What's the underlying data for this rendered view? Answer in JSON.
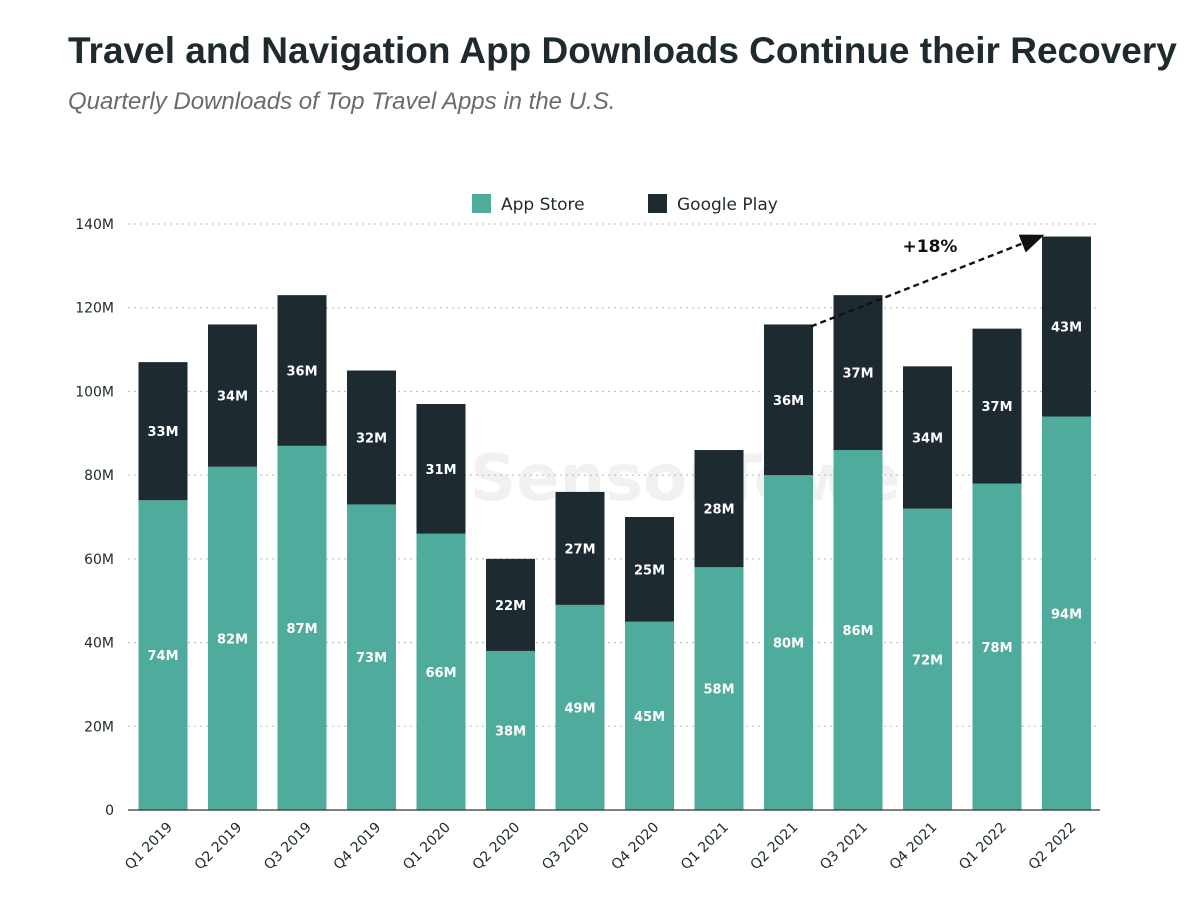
{
  "chart_data": {
    "type": "bar",
    "stacked": true,
    "title": "Travel and Navigation App Downloads Continue their Recovery",
    "subtitle": "Quarterly Downloads of Top Travel Apps in the U.S.",
    "categories": [
      "Q1 2019",
      "Q2 2019",
      "Q3 2019",
      "Q4 2019",
      "Q1 2020",
      "Q2 2020",
      "Q3 2020",
      "Q4 2020",
      "Q1 2021",
      "Q2 2021",
      "Q3 2021",
      "Q4 2021",
      "Q1 2022",
      "Q2 2022"
    ],
    "series": [
      {
        "name": "App Store",
        "color": "#4fab9b",
        "values": [
          74,
          82,
          87,
          73,
          66,
          38,
          49,
          45,
          58,
          80,
          86,
          72,
          78,
          94
        ],
        "labels": [
          "74M",
          "82M",
          "87M",
          "73M",
          "66M",
          "38M",
          "49M",
          "45M",
          "58M",
          "80M",
          "86M",
          "72M",
          "78M",
          "94M"
        ]
      },
      {
        "name": "Google Play",
        "color": "#1d2b30",
        "values": [
          33,
          34,
          36,
          32,
          31,
          22,
          27,
          25,
          28,
          36,
          37,
          34,
          37,
          43
        ],
        "labels": [
          "33M",
          "34M",
          "36M",
          "32M",
          "31M",
          "22M",
          "27M",
          "25M",
          "28M",
          "36M",
          "37M",
          "34M",
          "37M",
          "43M"
        ]
      }
    ],
    "ylim": [
      0,
      140
    ],
    "yticks": [
      0,
      20,
      40,
      60,
      80,
      100,
      120,
      140
    ],
    "ytick_labels": [
      "0",
      "20M",
      "40M",
      "60M",
      "80M",
      "100M",
      "120M",
      "140M"
    ],
    "grid": true,
    "legend_position": "top-center",
    "annotation": {
      "text": "+18%",
      "from_category": "Q2 2021",
      "to_category": "Q2 2022"
    },
    "watermark": "SensorTower"
  }
}
